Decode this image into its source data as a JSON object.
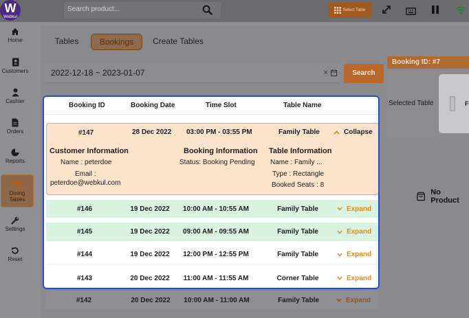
{
  "app": {
    "logo_letter": "W",
    "logo_text": "Webkul"
  },
  "search": {
    "placeholder": "Search product..."
  },
  "toolbar": {
    "select_table": "Select Table"
  },
  "sidebar": {
    "items": [
      {
        "label": "Home",
        "icon": "home-icon"
      },
      {
        "label": "Customers",
        "icon": "contact-book-icon"
      },
      {
        "label": "Cashier",
        "icon": "user-icon"
      },
      {
        "label": "Orders",
        "icon": "document-icon"
      },
      {
        "label": "Reports",
        "icon": "pie-chart-icon"
      },
      {
        "label": "Dining",
        "label2": "Tables",
        "icon": "cutlery-icon"
      },
      {
        "label": "Settings",
        "icon": "wrench-icon"
      },
      {
        "label": "Reset",
        "icon": "reset-icon"
      }
    ]
  },
  "tabs": [
    {
      "label": "Tables"
    },
    {
      "label": "Bookings"
    },
    {
      "label": "Create Tables"
    }
  ],
  "filter": {
    "date_range": "2022-12-18 ~ 2023-01-07",
    "clear": "×",
    "search_label": "Search"
  },
  "panel": {
    "booking_id": "Booking ID: #7",
    "selected_table": "Selected Table",
    "table_initial": "F",
    "no_product": "No Product"
  },
  "table": {
    "headers": [
      "Booking ID",
      "Booking Date",
      "Time Slot",
      "Table Name"
    ],
    "expanded": {
      "id": "#147",
      "date": "28 Dec 2022",
      "time": "03:00 PM - 03:55 PM",
      "table": "Family Table",
      "action": "Collapse",
      "customer_title": "Customer Information",
      "name": "Name : peterdoe",
      "email_label": "Email :",
      "email": "peterdoe@webkul.com",
      "booking_title": "Booking Information",
      "status": "Status: Booking Pending",
      "table_title": "Table Information",
      "table_name": "Name : Family ...",
      "type": "Type : Rectangle",
      "seats": "Booked Seats : 8"
    },
    "rows": [
      {
        "id": "#146",
        "date": "19 Dec 2022",
        "time": "10:00 AM - 10:55 AM",
        "table": "Family Table",
        "action": "Expand"
      },
      {
        "id": "#145",
        "date": "19 Dec 2022",
        "time": "09:00 AM - 09:55 AM",
        "table": "Family Table",
        "action": "Expand"
      },
      {
        "id": "#144",
        "date": "19 Dec 2022",
        "time": "12:00 PM - 12:55 PM",
        "table": "Family Table",
        "action": "Expand"
      },
      {
        "id": "#143",
        "date": "20 Dec 2022",
        "time": "11:00 AM - 11:55 AM",
        "table": "Corner Table",
        "action": "Expand"
      },
      {
        "id": "#142",
        "date": "20 Dec 2022",
        "time": "10:00 AM - 11:00 AM",
        "table": "Family Table",
        "action": "Expand"
      }
    ]
  },
  "colors": {
    "accent": "#e88a18",
    "highlight_border": "#1d4ed8",
    "brand": "#4b2a82",
    "green_row": "#d8f3df",
    "open_row": "#fbe3cc"
  }
}
